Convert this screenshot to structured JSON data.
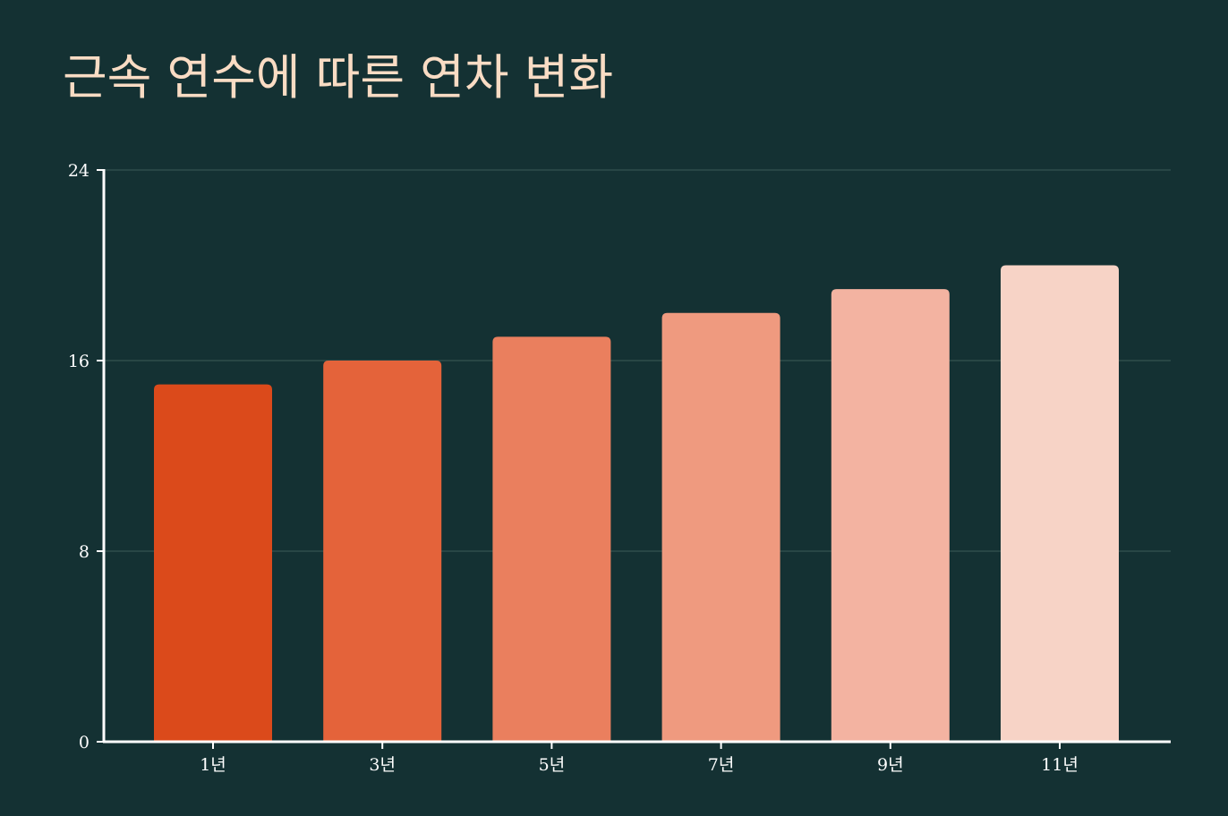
{
  "colors": {
    "background": "#143133",
    "title": "#f9dcc4",
    "axis": "#ffffff",
    "grid": "#3c5a57",
    "bars": [
      "#db4a1b",
      "#e4633a",
      "#ea7f5e",
      "#ef9a7f",
      "#f3b3a1",
      "#f7d3c6"
    ]
  },
  "chart_data": {
    "type": "bar",
    "title": "근속 연수에 따른 연차 변화",
    "xlabel": "",
    "ylabel": "",
    "categories": [
      "1년",
      "3년",
      "5년",
      "7년",
      "9년",
      "11년"
    ],
    "values": [
      15,
      16,
      17,
      18,
      19,
      20
    ],
    "ylim": [
      0,
      24
    ],
    "yticks": [
      "0",
      "8",
      "16",
      "24"
    ],
    "grid": true,
    "legend": "none"
  }
}
